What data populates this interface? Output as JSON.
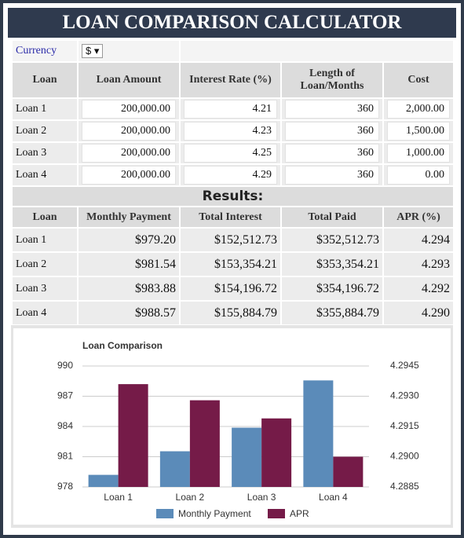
{
  "header": {
    "title": "LOAN COMPARISON CALCULATOR"
  },
  "currency": {
    "label": "Currency",
    "value": "$"
  },
  "inputs": {
    "columns": [
      "Loan",
      "Loan Amount",
      "Interest Rate (%)",
      "Length of Loan/Months",
      "Cost"
    ],
    "rows": [
      [
        "Loan 1",
        "200,000.00",
        "4.21",
        "360",
        "2,000.00"
      ],
      [
        "Loan 2",
        "200,000.00",
        "4.23",
        "360",
        "1,500.00"
      ],
      [
        "Loan 3",
        "200,000.00",
        "4.25",
        "360",
        "1,000.00"
      ],
      [
        "Loan 4",
        "200,000.00",
        "4.29",
        "360",
        "0.00"
      ]
    ]
  },
  "results": {
    "title": "Results:",
    "columns": [
      "Loan",
      "Monthly Payment",
      "Total Interest",
      "Total Paid",
      "APR (%)"
    ],
    "rows": [
      [
        "Loan 1",
        "$979.20",
        "$152,512.73",
        "$352,512.73",
        "4.294"
      ],
      [
        "Loan 2",
        "$981.54",
        "$153,354.21",
        "$353,354.21",
        "4.293"
      ],
      [
        "Loan 3",
        "$983.88",
        "$154,196.72",
        "$354,196.72",
        "4.292"
      ],
      [
        "Loan 4",
        "$988.57",
        "$155,884.79",
        "$355,884.79",
        "4.290"
      ]
    ]
  },
  "chart_data": {
    "type": "bar",
    "title": "Loan Comparison",
    "categories": [
      "Loan 1",
      "Loan 2",
      "Loan 3",
      "Loan 4"
    ],
    "series": [
      {
        "name": "Monthly Payment",
        "color": "#5b8bb9",
        "values": [
          979.2,
          981.54,
          983.88,
          988.57
        ]
      },
      {
        "name": "APR",
        "color": "#751b48",
        "axis": "y2",
        "values": [
          4.2936,
          4.2928,
          4.2919,
          4.29
        ]
      }
    ],
    "ylim": [
      978,
      990
    ],
    "yticks": [
      978,
      981,
      984,
      987,
      990
    ],
    "y2lim": [
      4.2885,
      4.2945
    ],
    "y2ticks": [
      4.2885,
      {
        "value": 4.29,
        "label": "4.2900"
      },
      4.2915,
      {
        "value": 4.293,
        "label": "4.2930"
      },
      4.2945
    ],
    "grid": true,
    "legend": "bottom"
  }
}
